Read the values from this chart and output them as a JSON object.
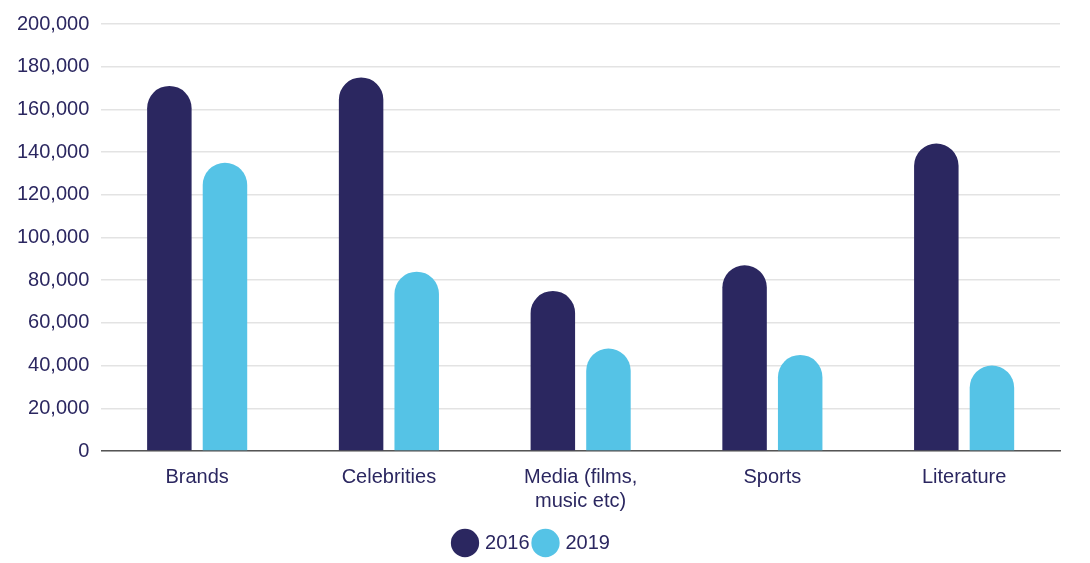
{
  "chart_data": {
    "type": "bar",
    "categories": [
      "Brands",
      "Celebrities",
      "Media (films, music etc)",
      "Sports",
      "Literature"
    ],
    "series": [
      {
        "name": "2016",
        "color": "#2b2760",
        "values": [
          171000,
          175000,
          75000,
          87000,
          144000
        ]
      },
      {
        "name": "2019",
        "color": "#55c3e6",
        "values": [
          135000,
          84000,
          48000,
          45000,
          40000
        ]
      }
    ],
    "ylim": [
      0,
      200000
    ],
    "yticks": [
      0,
      {
        "value": 20000,
        "label": "20,000"
      },
      {
        "value": 40000,
        "label": "40,000"
      },
      {
        "value": 60000,
        "label": "60,000"
      },
      {
        "value": 80000,
        "label": "80,000"
      },
      {
        "value": 100000,
        "label": "100,000"
      },
      {
        "value": 120000,
        "label": "120,000"
      },
      {
        "value": 140000,
        "label": "140,000"
      },
      {
        "value": 160000,
        "label": "160,000"
      },
      {
        "value": 180000,
        "label": "180,000"
      },
      {
        "value": 200000,
        "label": "200,000"
      }
    ],
    "grid": "y",
    "legend": "bottom"
  }
}
